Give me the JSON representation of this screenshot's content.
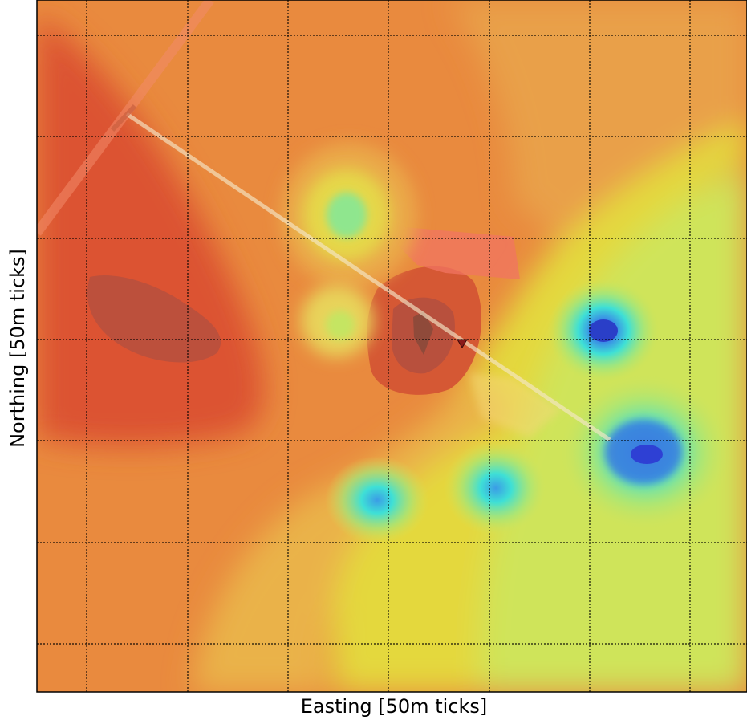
{
  "chart_data": {
    "type": "heatmap",
    "title": "",
    "xlabel": "Easting [50m ticks]",
    "ylabel": "Northing [50m ticks]",
    "grid": true,
    "grid_style": "dotted",
    "colormap": "jet (red high, blue low)",
    "colors": {
      "high": "#d9472b",
      "mid_high": "#eb8a3c",
      "mid": "#e6d93c",
      "mid_low": "#b8e356",
      "low_cyan": "#3ee0d6",
      "lowest": "#2a3fe0",
      "marker": "#8b1a1a"
    },
    "minima_count": 5,
    "marker_count": 1
  }
}
